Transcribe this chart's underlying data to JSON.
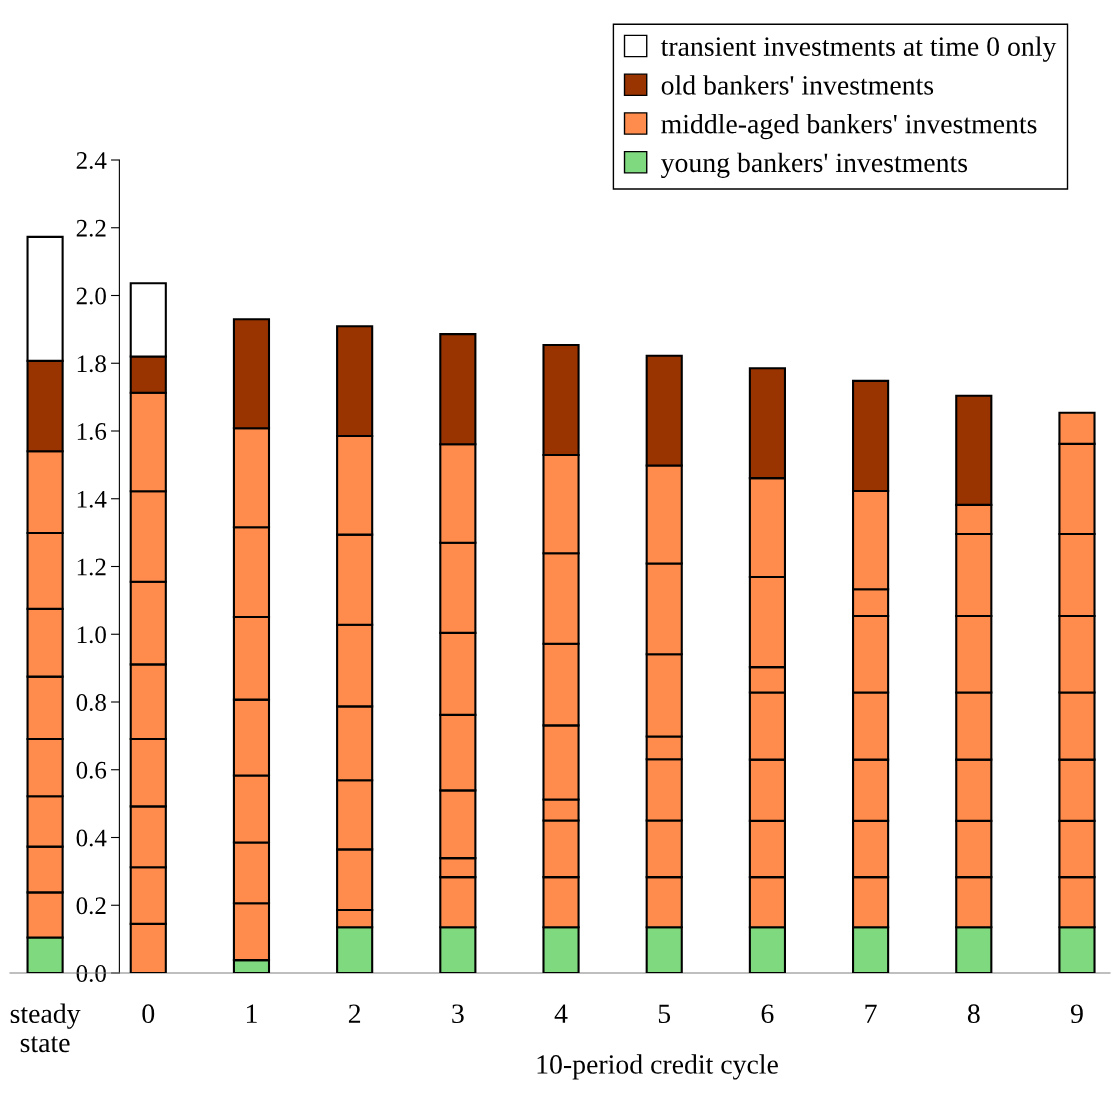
{
  "chart_data": {
    "type": "bar",
    "stacked": true,
    "xlabel": "10-period credit cycle",
    "categories": [
      "steady state",
      "0",
      "1",
      "2",
      "3",
      "4",
      "5",
      "6",
      "7",
      "8",
      "9"
    ],
    "series": [
      {
        "name": "young bankers' investments",
        "color": "#7fd97f",
        "values": [
          0.105,
          null,
          0.038,
          0.135,
          0.135,
          0.135,
          0.135,
          0.135,
          0.135,
          0.135,
          0.135
        ]
      },
      {
        "name": "middle-aged bankers' investments",
        "color": "#ff8c4d",
        "values": [
          0.133,
          0.145,
          0.168,
          0.051,
          0.148,
          0.148,
          0.148,
          0.148,
          0.148,
          0.148,
          0.148
        ]
      },
      {
        "color": "#ff8c4d",
        "values": [
          0.135,
          0.167,
          0.179,
          0.179,
          0.056,
          0.167,
          0.167,
          0.166,
          0.166,
          0.166,
          0.166
        ]
      },
      {
        "color": "#ff8c4d",
        "values": [
          0.149,
          0.18,
          0.198,
          0.204,
          0.2,
          0.062,
          0.181,
          0.181,
          0.181,
          0.181,
          0.181
        ]
      },
      {
        "color": "#ff8c4d",
        "values": [
          0.169,
          0.199,
          0.224,
          0.218,
          0.223,
          0.219,
          0.067,
          0.198,
          0.198,
          0.198,
          0.198
        ]
      },
      {
        "color": "#ff8c4d",
        "values": [
          0.184,
          0.22,
          0.244,
          0.241,
          0.242,
          0.241,
          0.243,
          0.075,
          0.226,
          0.226,
          0.226
        ]
      },
      {
        "color": "#ff8c4d",
        "values": [
          0.2,
          0.244,
          0.265,
          0.266,
          0.266,
          0.267,
          0.268,
          0.266,
          0.079,
          0.242,
          0.242
        ]
      },
      {
        "color": "#ff8c4d",
        "values": [
          0.224,
          0.267,
          0.292,
          0.291,
          0.291,
          0.29,
          0.289,
          0.292,
          0.29,
          0.086,
          0.266
        ]
      },
      {
        "color": "#ff8c4d",
        "values": [
          0.241,
          0.291,
          null,
          null,
          null,
          null,
          null,
          null,
          null,
          null,
          0.092
        ]
      },
      {
        "name": "old bankers' investments",
        "color": "#993300",
        "values": [
          0.267,
          0.107,
          0.322,
          0.324,
          0.325,
          0.325,
          0.324,
          0.324,
          0.325,
          0.322,
          null
        ]
      },
      {
        "name": "transient investments at time 0 only",
        "color": "#ffffff",
        "values": [
          0.366,
          0.216,
          null,
          null,
          null,
          null,
          null,
          null,
          null,
          null,
          null
        ]
      }
    ],
    "ylim": [
      0,
      2.4
    ],
    "yticks": [
      {
        "value": 0,
        "label": "0.0"
      },
      {
        "value": 0.2,
        "label": "0.2"
      },
      {
        "value": 0.4,
        "label": "0.4"
      },
      {
        "value": 0.6,
        "label": "0.6"
      },
      {
        "value": 0.8,
        "label": "0.8"
      },
      {
        "value": 1.0,
        "label": "1.0"
      },
      {
        "value": 1.2,
        "label": "1.2"
      },
      {
        "value": 1.4,
        "label": "1.4"
      },
      {
        "value": 1.6,
        "label": "1.6"
      },
      {
        "value": 1.8,
        "label": "1.8"
      },
      {
        "value": 2.0,
        "label": "2.0"
      },
      {
        "value": 2.2,
        "label": "2.2"
      },
      {
        "value": 2.4,
        "label": "2.4"
      }
    ],
    "legend": "top right"
  }
}
